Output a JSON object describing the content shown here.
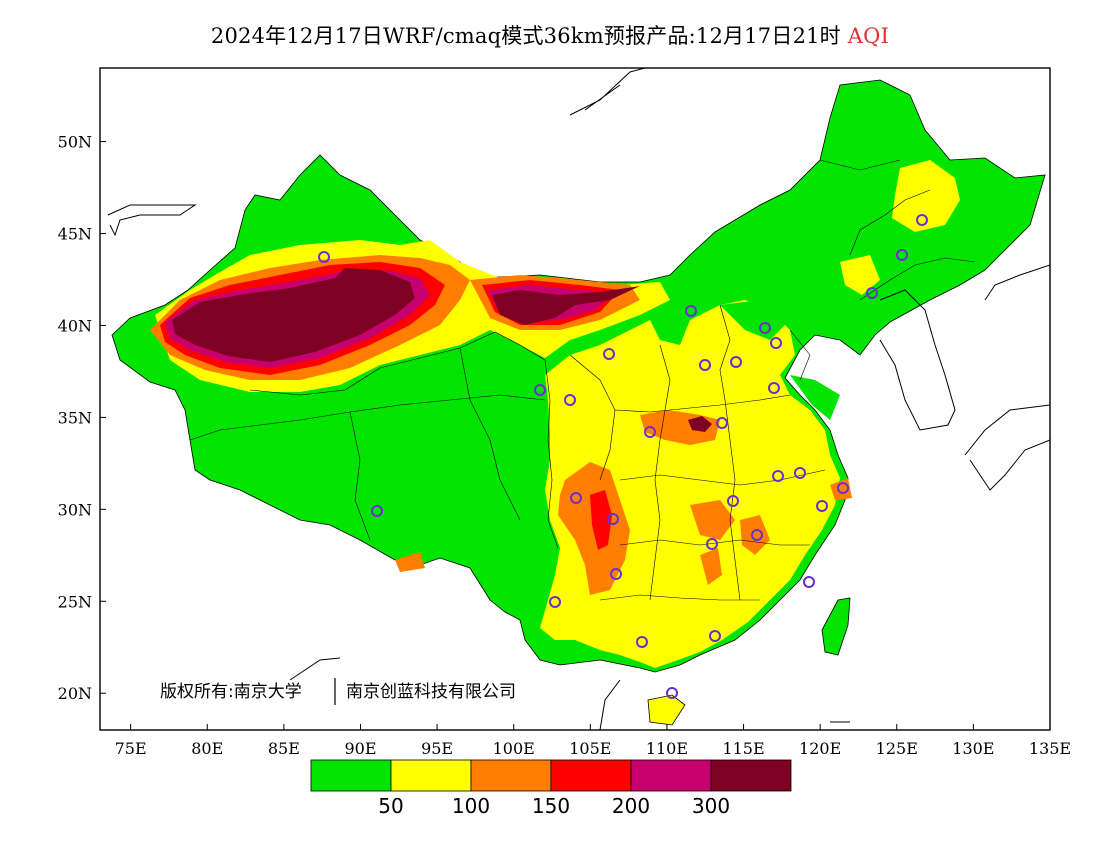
{
  "title": {
    "text": "2024年12月17日WRF/cmaq模式36km预报产品:12月17日21时",
    "variable": "AQI",
    "variable_color": "#e0302f"
  },
  "axes": {
    "longitude_ticks": [
      "75E",
      "80E",
      "85E",
      "90E",
      "95E",
      "100E",
      "105E",
      "110E",
      "115E",
      "120E",
      "125E",
      "130E",
      "135E"
    ],
    "latitude_ticks": [
      "20N",
      "25N",
      "30N",
      "35N",
      "40N",
      "45N",
      "50N"
    ],
    "lon_range": [
      73,
      135
    ],
    "lat_range": [
      18,
      54
    ]
  },
  "copyright": {
    "text": "版权所有:南京大学",
    "org": "南京创蓝科技有限公司"
  },
  "colorbar": {
    "colors": [
      "#00e400",
      "#ffff00",
      "#ff7e00",
      "#ff0000",
      "#c8006e",
      "#7e0023"
    ],
    "labels": [
      "50",
      "100",
      "150",
      "200",
      "300"
    ]
  },
  "style": {
    "land_default": "#ffff00",
    "water": "#ffffff",
    "station_marker_color": "#6a2fd0"
  }
}
